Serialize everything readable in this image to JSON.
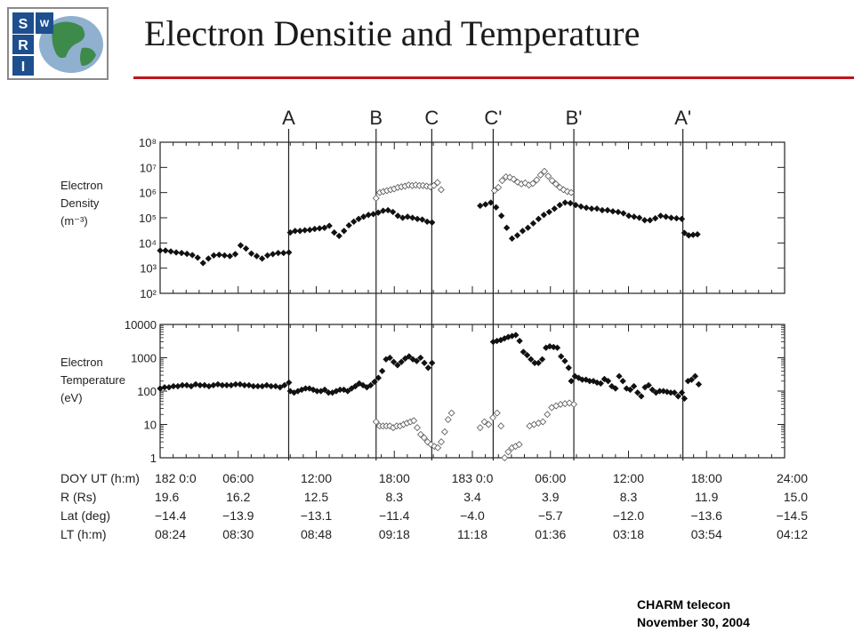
{
  "slide": {
    "title": "Electron Densitie and Temperature",
    "logo_letters": [
      "S",
      "W",
      "R",
      "I"
    ],
    "footer": {
      "line1": "CHARM telecon",
      "line2": "November 30, 2004"
    },
    "colors": {
      "rule": "#c0141b",
      "logo_border": "#8a8a8a",
      "logo_tile": "#1d4f8e",
      "globe_sea": "#8fb0cf",
      "globe_land": "#3e8a4a"
    }
  },
  "chart_data": {
    "type": "scatter",
    "x_unit": "hours from 182 0:00",
    "xlim": [
      0,
      48
    ],
    "event_markers": [
      {
        "label": "A",
        "x": 9.88
      },
      {
        "label": "B",
        "x": 16.6
      },
      {
        "label": "C",
        "x": 20.88
      },
      {
        "label": "C'",
        "x": 25.6
      },
      {
        "label": "B'",
        "x": 31.8
      },
      {
        "label": "A'",
        "x": 40.18
      }
    ],
    "ephemeris": {
      "row_labels": [
        "DOY UT (h:m)",
        "R (Rs)",
        "Lat (deg)",
        "LT (h:m)"
      ],
      "columns": [
        {
          "ut": "182 0:0",
          "r": "19.6",
          "lat": "−14.4",
          "lt": "08:24"
        },
        {
          "ut": "06:00",
          "r": "16.2",
          "lat": "−13.9",
          "lt": "08:30"
        },
        {
          "ut": "12:00",
          "r": "12.5",
          "lat": "−13.1",
          "lt": "08:48"
        },
        {
          "ut": "18:00",
          "r": "8.3",
          "lat": "−11.4",
          "lt": "09:18"
        },
        {
          "ut": "183 0:0",
          "r": "3.4",
          "lat": "−4.0",
          "lt": "11:18"
        },
        {
          "ut": "06:00",
          "r": "3.9",
          "lat": "−5.7",
          "lt": "01:36"
        },
        {
          "ut": "12:00",
          "r": "8.3",
          "lat": "−12.0",
          "lt": "03:18"
        },
        {
          "ut": "18:00",
          "r": "11.9",
          "lat": "−13.6",
          "lt": "03:54"
        },
        {
          "ut": "24:00",
          "r": "15.0",
          "lat": "−14.5",
          "lt": "04:12"
        }
      ]
    },
    "panels": [
      {
        "name": "density",
        "ylabel_lines": [
          "Electron",
          "Density",
          "(m⁻³)"
        ],
        "yscale": "log",
        "ylim": [
          100,
          100000000
        ],
        "y_ticks": [
          "10²",
          "10³",
          "10⁴",
          "10⁵",
          "10⁶",
          "10⁷",
          "10⁸"
        ],
        "series": [
          {
            "marker": "filled-diamond",
            "segments": [
              {
                "t0": 0.0,
                "t1": 9.9,
                "values": [
                  5000,
                  5000,
                  4600,
                  4200,
                  4000,
                  3700,
                  3300,
                  2600,
                  1600,
                  2400,
                  3200,
                  3400,
                  3200,
                  3000,
                  3600,
                  8000,
                  6000,
                  3800,
                  3000,
                  2400,
                  3200,
                  3600,
                  4000,
                  4000,
                  4200
                ]
              },
              {
                "t0": 10.0,
                "t1": 20.9,
                "values": [
                  26000,
                  30000,
                  30000,
                  32000,
                  33000,
                  36000,
                  38000,
                  40000,
                  48000,
                  26000,
                  19000,
                  30000,
                  50000,
                  70000,
                  90000,
                  110000,
                  130000,
                  140000,
                  160000,
                  190000,
                  200000,
                  170000,
                  120000,
                  100000,
                  110000,
                  100000,
                  90000,
                  85000,
                  70000,
                  65000
                ]
              },
              {
                "t0": 24.6,
                "t1": 40.1,
                "values": [
                  300000,
                  340000,
                  400000,
                  260000,
                  120000,
                  40000,
                  15000,
                  20000,
                  30000,
                  40000,
                  60000,
                  90000,
                  130000,
                  170000,
                  230000,
                  320000,
                  400000,
                  380000,
                  320000,
                  280000,
                  250000,
                  230000,
                  230000,
                  200000,
                  200000,
                  180000,
                  170000,
                  150000,
                  120000,
                  110000,
                  100000,
                  80000,
                  80000,
                  95000,
                  120000,
                  110000,
                  100000,
                  95000,
                  90000
                ]
              },
              {
                "t0": 40.3,
                "t1": 41.3,
                "values": [
                  25000,
                  20000,
                  21000,
                  22000
                ]
              }
            ]
          },
          {
            "marker": "open-diamond",
            "segments": [
              {
                "t0": 16.6,
                "t1": 21.6,
                "values": [
                  600000,
                  1000000,
                  1100000,
                  1200000,
                  1300000,
                  1400000,
                  1600000,
                  1700000,
                  1800000,
                  2000000,
                  1900000,
                  2000000,
                  1900000,
                  1900000,
                  1800000,
                  1700000,
                  1900000,
                  2500000,
                  1300000
                ]
              },
              {
                "t0": 25.7,
                "t1": 31.6,
                "values": [
                  1200000,
                  1600000,
                  3000000,
                  4200000,
                  4000000,
                  3400000,
                  2600000,
                  2200000,
                  2400000,
                  2000000,
                  2300000,
                  3200000,
                  5000000,
                  7000000,
                  4500000,
                  3000000,
                  2200000,
                  1600000,
                  1300000,
                  1100000,
                  1000000
                ]
              }
            ]
          }
        ]
      },
      {
        "name": "temperature",
        "ylabel_lines": [
          "Electron",
          "Temperature",
          "(eV)"
        ],
        "yscale": "log",
        "ylim": [
          1,
          10000
        ],
        "y_ticks": [
          "1",
          "10",
          "100",
          "1000",
          "10000"
        ],
        "series": [
          {
            "marker": "filled-diamond",
            "segments": [
              {
                "t0": 0.0,
                "t1": 9.9,
                "values": [
                  120,
                  130,
                  130,
                  140,
                  140,
                  150,
                  150,
                  140,
                  160,
                  150,
                  150,
                  140,
                  150,
                  160,
                  150,
                  150,
                  150,
                  160,
                  160,
                  150,
                  150,
                  140,
                  140,
                  140,
                  150,
                  140,
                  140,
                  130,
                  150,
                  180
                ]
              },
              {
                "t0": 10.0,
                "t1": 20.9,
                "values": [
                  100,
                  90,
                  100,
                  110,
                  120,
                  120,
                  110,
                  100,
                  100,
                  110,
                  90,
                  90,
                  100,
                  110,
                  110,
                  100,
                  120,
                  140,
                  170,
                  150,
                  130,
                  150,
                  190,
                  250,
                  400,
                  900,
                  1000,
                  750,
                  600,
                  750,
                  950,
                  1100,
                  900,
                  800,
                  1000,
                  700,
                  500,
                  700
                ]
              },
              {
                "t0": 25.6,
                "t1": 31.4,
                "values": [
                  3000,
                  3200,
                  3400,
                  3800,
                  4200,
                  4500,
                  4800,
                  3200,
                  1500,
                  1200,
                  900,
                  700,
                  700,
                  900,
                  2000,
                  2200,
                  2100,
                  2000,
                  1100,
                  800,
                  500
                ]
              },
              {
                "t0": 31.6,
                "t1": 40.1,
                "values": [
                  200,
                  280,
                  250,
                  220,
                  220,
                  200,
                  200,
                  180,
                  170,
                  230,
                  200,
                  140,
                  120,
                  280,
                  200,
                  120,
                  110,
                  140,
                  90,
                  70,
                  130,
                  150,
                  110,
                  90,
                  100,
                  100,
                  95,
                  90,
                  90,
                  70,
                  90
                ]
              },
              {
                "t0": 40.3,
                "t1": 41.4,
                "values": [
                  60,
                  200,
                  220,
                  280,
                  160
                ]
              }
            ]
          },
          {
            "marker": "open-diamond",
            "segments": [
              {
                "t0": 16.6,
                "t1": 22.4,
                "values": [
                  12,
                  9,
                  9,
                  9,
                  9,
                  8,
                  9,
                  9,
                  10,
                  11,
                  12,
                  13,
                  8,
                  5,
                  4,
                  3,
                  2.5,
                  2.2,
                  2,
                  3,
                  6,
                  14,
                  22
                ]
              },
              {
                "t0": 24.6,
                "t1": 25.9,
                "values": [
                  8,
                  12,
                  10,
                  16,
                  22
                ]
              },
              {
                "t0": 26.2,
                "t1": 27.6,
                "values": [
                  9,
                  1,
                  1.5,
                  2,
                  2.2,
                  2.5
                ]
              },
              {
                "t0": 28.4,
                "t1": 31.8,
                "values": [
                  9,
                  10,
                  11,
                  12,
                  20,
                  32,
                  36,
                  40,
                  42,
                  44,
                  40
                ]
              }
            ]
          }
        ]
      }
    ]
  }
}
